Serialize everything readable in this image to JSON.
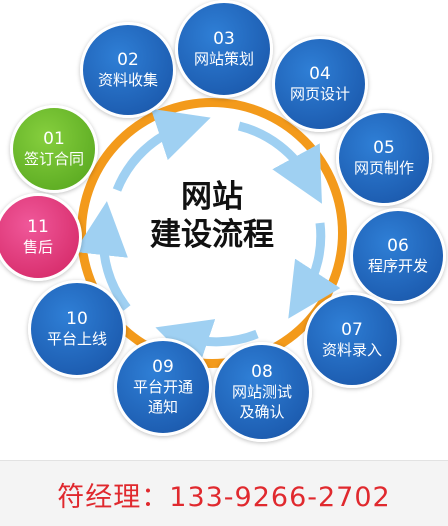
{
  "diagram": {
    "title_line1": "网站",
    "title_line2": "建设流程",
    "steps": [
      {
        "num": "01",
        "label": "签订合同"
      },
      {
        "num": "02",
        "label": "资料收集"
      },
      {
        "num": "03",
        "label": "网站策划"
      },
      {
        "num": "04",
        "label": "网页设计"
      },
      {
        "num": "05",
        "label": "网页制作"
      },
      {
        "num": "06",
        "label": "程序开发"
      },
      {
        "num": "07",
        "label": "资料录入"
      },
      {
        "num": "08",
        "label": "网站测试及确认"
      },
      {
        "num": "09",
        "label": "平台开通通知"
      },
      {
        "num": "10",
        "label": "平台上线"
      },
      {
        "num": "11",
        "label": "售后"
      }
    ]
  },
  "footer": {
    "contact": "符经理：133-9266-2702"
  },
  "colors": {
    "step_blue": "#1e5fb3",
    "step_green": "#5fae24",
    "step_pink": "#d9306f",
    "ring_orange": "#f39a1b",
    "arrow_blue": "#9fd0f2",
    "contact_red": "#e0292e"
  }
}
